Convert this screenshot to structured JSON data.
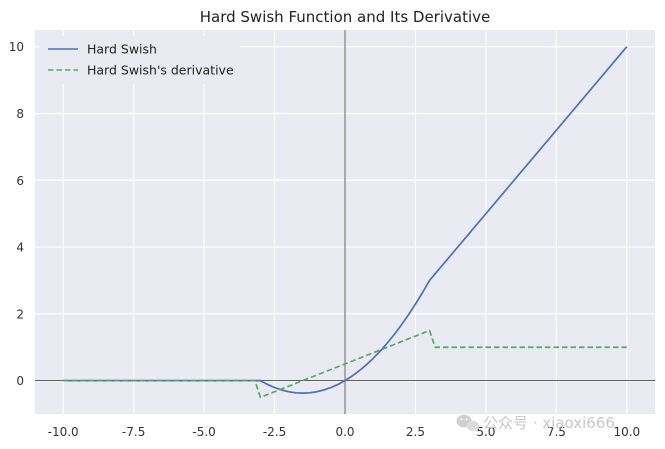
{
  "chart_data": {
    "type": "line",
    "title": "Hard Swish Function and Its Derivative",
    "xlabel": "",
    "ylabel": "",
    "xlim": [
      -11,
      11
    ],
    "ylim": [
      -1,
      10.5
    ],
    "x_ticks": [
      -10,
      -7.5,
      -5,
      -2.5,
      0,
      2.5,
      5,
      7.5,
      10
    ],
    "x_tick_labels": [
      "-10.0",
      "-7.5",
      "-5.0",
      "-2.5",
      "0.0",
      "2.5",
      "5.0",
      "7.5",
      "10.0"
    ],
    "y_ticks": [
      0,
      2,
      4,
      6,
      8,
      10
    ],
    "y_tick_labels": [
      "0",
      "2",
      "4",
      "6",
      "8",
      "10"
    ],
    "grid": true,
    "background": "#eaeaf2",
    "zero_lines": true,
    "legend_position": "top-left",
    "series": [
      {
        "name": "Hard Swish",
        "color": "#4c72b0",
        "style": "solid",
        "x": [
          -10,
          -3,
          -2.75,
          -2.5,
          -2.25,
          -2,
          -1.75,
          -1.5,
          -1.25,
          -1,
          -0.75,
          -0.5,
          -0.25,
          0,
          0.25,
          0.5,
          0.75,
          1,
          1.25,
          1.5,
          1.75,
          2,
          2.25,
          2.5,
          2.75,
          3,
          10
        ],
        "y": [
          0,
          0,
          -0.115,
          -0.208,
          -0.281,
          -0.333,
          -0.365,
          -0.375,
          -0.365,
          -0.333,
          -0.281,
          -0.208,
          -0.115,
          0,
          0.135,
          0.292,
          0.469,
          0.667,
          0.885,
          1.125,
          1.385,
          1.667,
          1.969,
          2.292,
          2.635,
          3,
          10
        ]
      },
      {
        "name": "Hard Swish's derivative",
        "color": "#55a868",
        "style": "dashed",
        "x": [
          -10,
          -3.2,
          -3,
          3,
          3.2,
          10
        ],
        "y": [
          0,
          0,
          -0.5,
          1.5,
          1,
          1
        ]
      }
    ]
  },
  "watermark": {
    "text": "公众号 · xiaoxi666",
    "icon": "wechat-icon"
  }
}
